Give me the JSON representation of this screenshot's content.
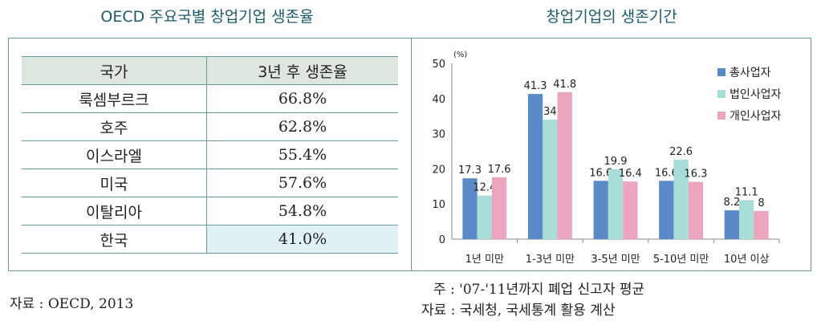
{
  "left": {
    "title": "OECD 주요국별 창업기업 생존율",
    "headers": [
      "국가",
      "3년 후 생존율"
    ],
    "rows": [
      [
        "룩셈부르크",
        "66.8%"
      ],
      [
        "호주",
        "62.8%"
      ],
      [
        "이스라엘",
        "55.4%"
      ],
      [
        "미국",
        "57.6%"
      ],
      [
        "이탈리아",
        "54.8%"
      ],
      [
        "한국",
        "41.0%"
      ]
    ],
    "source": "자료 : OECD, 2013"
  },
  "right": {
    "note": "주 : '07-'11년까지 폐업 신고자 평균",
    "source": "자료 : 국세청, 국세통계 활용 계산"
  },
  "chart_data": {
    "type": "bar",
    "title": "창업기업의 생존기간",
    "ylabel": "(%)",
    "ylim": [
      0,
      50
    ],
    "yticks": [
      0,
      10,
      20,
      30,
      40,
      50
    ],
    "categories": [
      "1년 미만",
      "1-3년 미만",
      "3-5년 미만",
      "5-10년 미만",
      "10년 이상"
    ],
    "series": [
      {
        "name": "총사업자",
        "color": "#5b8ac8",
        "values": [
          17.3,
          41.3,
          16.6,
          16.6,
          8.2
        ]
      },
      {
        "name": "법인사업자",
        "color": "#a8ddd8",
        "values": [
          12.4,
          34,
          19.9,
          22.6,
          11.1
        ]
      },
      {
        "name": "개인사업자",
        "color": "#eca5bf",
        "values": [
          17.6,
          41.8,
          16.4,
          16.3,
          8
        ]
      }
    ],
    "legend": "top-right"
  }
}
